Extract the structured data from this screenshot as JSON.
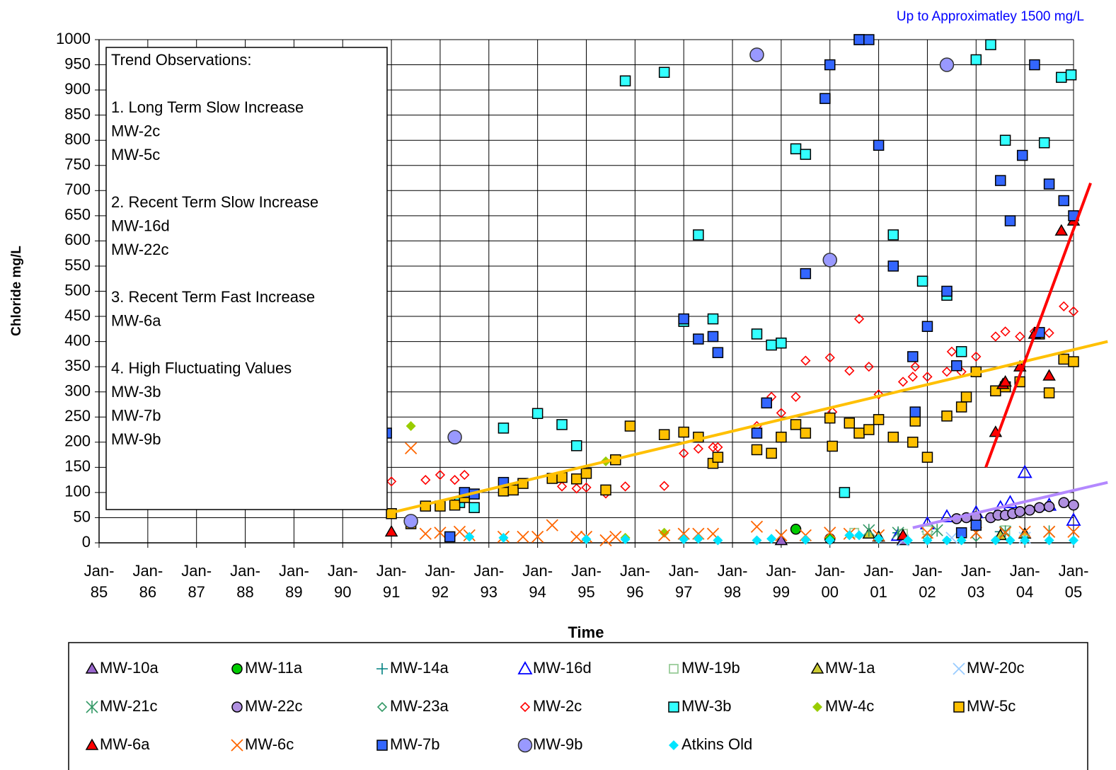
{
  "chart_data": {
    "type": "scatter",
    "annotation": "Up to Approximatley 1500 mg/L",
    "ylabel": "Chloride mg/L",
    "xlabel": "Time",
    "xlim": [
      1985,
      2005.7
    ],
    "ylim": [
      0,
      1000
    ],
    "xticks": [
      {
        "value": 1985,
        "label": "Jan-85"
      },
      {
        "value": 1986,
        "label": "Jan-86"
      },
      {
        "value": 1987,
        "label": "Jan-87"
      },
      {
        "value": 1988,
        "label": "Jan-88"
      },
      {
        "value": 1989,
        "label": "Jan-89"
      },
      {
        "value": 1990,
        "label": "Jan-90"
      },
      {
        "value": 1991,
        "label": "Jan-91"
      },
      {
        "value": 1992,
        "label": "Jan-92"
      },
      {
        "value": 1993,
        "label": "Jan-93"
      },
      {
        "value": 1994,
        "label": "Jan-94"
      },
      {
        "value": 1995,
        "label": "Jan-95"
      },
      {
        "value": 1996,
        "label": "Jan-96"
      },
      {
        "value": 1997,
        "label": "Jan-97"
      },
      {
        "value": 1998,
        "label": "Jan-98"
      },
      {
        "value": 1999,
        "label": "Jan-99"
      },
      {
        "value": 2000,
        "label": "Jan-00"
      },
      {
        "value": 2001,
        "label": "Jan-01"
      },
      {
        "value": 2002,
        "label": "Jan-02"
      },
      {
        "value": 2003,
        "label": "Jan-03"
      },
      {
        "value": 2004,
        "label": "Jan-04"
      },
      {
        "value": 2005,
        "label": "Jan-05"
      }
    ],
    "yticks": [
      0,
      50,
      100,
      150,
      200,
      250,
      300,
      350,
      400,
      450,
      500,
      550,
      600,
      650,
      700,
      750,
      800,
      850,
      900,
      950,
      1000
    ],
    "grid": true,
    "notes": {
      "title": "Trend Observations:",
      "groups": [
        {
          "heading": "1. Long Term Slow Increase",
          "wells": [
            "MW-2c",
            "MW-5c"
          ]
        },
        {
          "heading": "2. Recent Term Slow Increase",
          "wells": [
            "MW-16d",
            "MW-22c"
          ]
        },
        {
          "heading": "3. Recent Term Fast Increase",
          "wells": [
            "MW-6a"
          ]
        },
        {
          "heading": "4. High Fluctuating Values",
          "wells": [
            "MW-3b",
            "MW-7b",
            "MW-9b"
          ]
        }
      ]
    },
    "trendlines": [
      {
        "color": "#ffc000",
        "x": [
          1991,
          2005.7
        ],
        "values": [
          60,
          400
        ]
      },
      {
        "color": "#ff0000",
        "x": [
          2003.2,
          2005.35
        ],
        "values": [
          150,
          715
        ]
      },
      {
        "color": "#b388ff",
        "x": [
          2001.7,
          2005.7
        ],
        "values": [
          30,
          120
        ]
      }
    ],
    "series": [
      {
        "name": "MW-10a",
        "marker": "triangle",
        "color": "#9966cc",
        "x": [
          1999.0,
          2001.5
        ],
        "values": [
          5,
          5
        ]
      },
      {
        "name": "MW-11a",
        "marker": "circle",
        "color": "#00cc00",
        "x": [
          1999.3,
          2000.0
        ],
        "values": [
          27,
          8
        ]
      },
      {
        "name": "MW-14a",
        "marker": "plus",
        "color": "#008080",
        "x": [
          2001.4,
          2002.0,
          2003.5
        ],
        "values": [
          20,
          22,
          22
        ]
      },
      {
        "name": "MW-16d",
        "marker": "triangle-open",
        "color": "#0000ff",
        "x": [
          2001.4,
          2002.0,
          2002.4,
          2003.0,
          2003.5,
          2003.7,
          2004.0,
          2004.5,
          2005.0
        ],
        "values": [
          15,
          38,
          52,
          60,
          70,
          80,
          140,
          75,
          45
        ]
      },
      {
        "name": "MW-19b",
        "marker": "square-open",
        "color": "#99cc99",
        "x": [
          2000.5,
          2001.5,
          2002.0,
          2003.6
        ],
        "values": [
          20,
          18,
          25,
          25
        ]
      },
      {
        "name": "MW-1a",
        "marker": "triangle",
        "color": "#cccc33",
        "x": [
          2000.8,
          2001.0,
          2003.5,
          2004.0
        ],
        "values": [
          18,
          12,
          15,
          18
        ]
      },
      {
        "name": "MW-20c",
        "marker": "x",
        "color": "#99ccff",
        "x": [
          2001.5,
          2002.5,
          2004.0
        ],
        "values": [
          5,
          10,
          10
        ]
      },
      {
        "name": "MW-21c",
        "marker": "asterisk",
        "color": "#339966",
        "x": [
          2000.8,
          2001.4,
          2002.2,
          2003.6,
          2004.5
        ],
        "values": [
          25,
          20,
          25,
          22,
          22
        ]
      },
      {
        "name": "MW-22c",
        "marker": "circle",
        "color": "#b090e0",
        "x": [
          2002.6,
          2002.8,
          2003.0,
          2003.3,
          2003.45,
          2003.6,
          2003.75,
          2003.9,
          2004.1,
          2004.3,
          2004.5,
          2004.8,
          2005.0
        ],
        "values": [
          48,
          50,
          52,
          50,
          55,
          55,
          58,
          62,
          65,
          70,
          72,
          80,
          75
        ]
      },
      {
        "name": "MW-23a",
        "marker": "diamond-open",
        "color": "#339966",
        "x": [
          2002.0,
          2003.0,
          2004.0
        ],
        "values": [
          10,
          12,
          15
        ]
      },
      {
        "name": "MW-2c",
        "marker": "diamond-open",
        "color": "#ff0000",
        "x": [
          1991.0,
          1991.7,
          1992.0,
          1992.3,
          1992.5,
          1993.3,
          1994.5,
          1994.8,
          1995.0,
          1995.4,
          1995.8,
          1996.6,
          1997.0,
          1997.3,
          1997.6,
          1997.7,
          1998.5,
          1998.8,
          1999.0,
          1999.3,
          1999.5,
          2000.0,
          2000.05,
          2000.4,
          2000.6,
          2000.8,
          2001.0,
          2001.5,
          2001.7,
          2001.75,
          2002.0,
          2002.4,
          2002.5,
          2002.7,
          2003.0,
          2003.4,
          2003.6,
          2003.9,
          2004.2,
          2004.5,
          2004.8,
          2005.0
        ],
        "values": [
          122,
          125,
          135,
          125,
          135,
          120,
          112,
          108,
          110,
          98,
          112,
          113,
          178,
          187,
          190,
          190,
          232,
          290,
          258,
          290,
          362,
          368,
          260,
          342,
          445,
          350,
          295,
          320,
          330,
          350,
          330,
          340,
          380,
          340,
          370,
          410,
          420,
          410,
          420,
          417,
          470,
          460
        ]
      },
      {
        "name": "MW-3b",
        "marker": "square",
        "color": "#33ffff",
        "x": [
          1992.4,
          1992.7,
          1993.3,
          1994.0,
          1994.5,
          1994.8,
          1995.8,
          1996.6,
          1997.0,
          1997.3,
          1997.6,
          1998.5,
          1998.8,
          1999.0,
          1999.3,
          1999.5,
          2000.3,
          2000.6,
          2001.3,
          2001.9,
          2002.4,
          2002.7,
          2003.0,
          2003.3,
          2003.6,
          2004.4,
          2004.75,
          2004.95
        ],
        "values": [
          80,
          70,
          228,
          257,
          235,
          193,
          918,
          935,
          440,
          612,
          445,
          415,
          393,
          397,
          783,
          772,
          100,
          1000,
          612,
          520,
          492,
          380,
          960,
          990,
          800,
          795,
          925,
          930
        ]
      },
      {
        "name": "MW-4c",
        "marker": "diamond",
        "color": "#99cc00",
        "x": [
          1991.4,
          1995.4,
          1996.6,
          1995.8
        ],
        "values": [
          232,
          162,
          20,
          10
        ]
      },
      {
        "name": "MW-5c",
        "marker": "square",
        "color": "#ffc000",
        "x": [
          1991.0,
          1991.4,
          1991.7,
          1992.0,
          1992.3,
          1992.5,
          1993.3,
          1993.5,
          1993.7,
          1994.3,
          1994.5,
          1994.8,
          1995.0,
          1995.4,
          1995.6,
          1995.9,
          1996.6,
          1997.0,
          1997.3,
          1997.6,
          1997.7,
          1998.5,
          1998.8,
          1999.0,
          1999.3,
          1999.5,
          2000.0,
          2000.05,
          2000.4,
          2000.6,
          2000.8,
          2001.0,
          2001.3,
          2001.7,
          2001.75,
          2002.0,
          2002.4,
          2002.7,
          2002.8,
          2003.0,
          2003.4,
          2003.6,
          2003.9,
          2004.3,
          2004.5,
          2004.8,
          2005.0
        ],
        "values": [
          58,
          38,
          73,
          73,
          75,
          90,
          103,
          105,
          118,
          128,
          130,
          127,
          138,
          105,
          165,
          232,
          215,
          220,
          210,
          158,
          170,
          185,
          178,
          210,
          235,
          218,
          248,
          192,
          238,
          218,
          225,
          245,
          210,
          200,
          242,
          170,
          252,
          270,
          290,
          340,
          302,
          310,
          320,
          415,
          298,
          365,
          360
        ]
      },
      {
        "name": "MW-6a",
        "marker": "triangle",
        "color": "#ff0000",
        "x": [
          1991.0,
          2001.5,
          2003.4,
          2003.55,
          2003.6,
          2003.9,
          2004.2,
          2004.5,
          2004.75,
          2005.0
        ],
        "values": [
          22,
          15,
          220,
          315,
          320,
          350,
          415,
          332,
          620,
          640
        ]
      },
      {
        "name": "MW-6c",
        "marker": "x",
        "color": "#ff6600",
        "x": [
          1991.4,
          1991.7,
          1992.0,
          1992.4,
          1992.6,
          1993.3,
          1993.7,
          1994.0,
          1994.3,
          1994.8,
          1995.0,
          1995.4,
          1995.6,
          1996.6,
          1997.0,
          1997.3,
          1997.6,
          1998.5,
          1999.0,
          1999.5,
          2000.0,
          2000.4,
          2001.0,
          2002.0,
          2003.0,
          2003.6,
          2004.0,
          2004.5,
          2005.0
        ],
        "values": [
          188,
          18,
          20,
          22,
          15,
          12,
          12,
          12,
          35,
          12,
          12,
          5,
          12,
          15,
          18,
          18,
          18,
          32,
          15,
          15,
          20,
          18,
          15,
          20,
          20,
          20,
          22,
          22,
          22
        ]
      },
      {
        "name": "MW-7b",
        "marker": "square",
        "color": "#3366ff",
        "x": [
          1990.9,
          1992.2,
          1992.5,
          1992.7,
          1993.3,
          1997.0,
          1997.3,
          1997.6,
          1997.7,
          1998.5,
          1998.7,
          1999.5,
          2000.0,
          1999.9,
          2000.6,
          2000.8,
          2001.0,
          2001.3,
          2002.0,
          2001.7,
          2001.75,
          2002.4,
          2002.6,
          2002.7,
          2003.0,
          2003.5,
          2003.7,
          2003.95,
          2004.2,
          2004.3,
          2004.5,
          2004.8,
          2005.0
        ],
        "values": [
          218,
          12,
          100,
          97,
          120,
          445,
          405,
          410,
          378,
          218,
          278,
          535,
          950,
          883,
          1000,
          1000,
          790,
          550,
          430,
          370,
          260,
          500,
          352,
          20,
          35,
          720,
          640,
          770,
          950,
          418,
          713,
          680,
          650
        ]
      },
      {
        "name": "MW-9b",
        "marker": "circle-large",
        "color": "#9999ff",
        "x": [
          1991.4,
          1992.3,
          1998.5,
          2000.0,
          2002.4
        ],
        "values": [
          43,
          210,
          970,
          562,
          950
        ]
      },
      {
        "name": "Atkins Old",
        "marker": "diamond",
        "color": "#00e5ff",
        "x": [
          1992.6,
          1993.3,
          1995.0,
          1995.8,
          1997.0,
          1997.3,
          1997.7,
          1998.5,
          1998.8,
          1999.5,
          2000.0,
          2000.4,
          2000.6,
          2001.0,
          2001.6,
          2002.0,
          2002.4,
          2002.7,
          2003.4,
          2003.7,
          2004.0,
          2004.5,
          2005.0
        ],
        "values": [
          12,
          10,
          7,
          7,
          7,
          8,
          5,
          5,
          8,
          6,
          5,
          15,
          15,
          8,
          5,
          5,
          5,
          5,
          5,
          5,
          5,
          5,
          5
        ]
      }
    ]
  }
}
